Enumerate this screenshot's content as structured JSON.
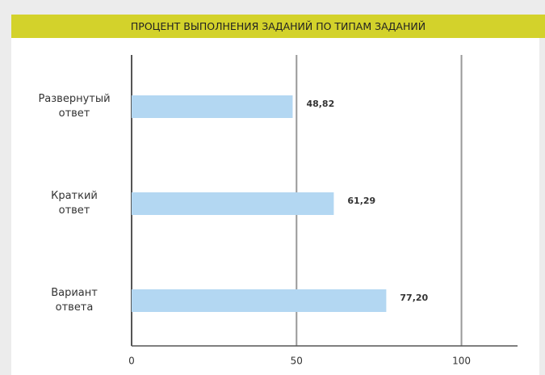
{
  "chart_data": {
    "type": "bar",
    "orientation": "horizontal",
    "title": "ПРОЦЕНТ ВЫПОЛНЕНИЯ ЗАДАНИЙ ПО ТИПАМ ЗАДАНИЙ",
    "categories": [
      "Развернутый\nответ",
      "Краткий\nответ",
      "Вариант\nответа"
    ],
    "values": [
      48.82,
      61.29,
      77.2
    ],
    "value_labels": [
      "48,82",
      "61,29",
      "77,20"
    ],
    "color": "#b3d7f2",
    "xlim": [
      0,
      117
    ],
    "xticks": [
      0,
      50,
      100
    ],
    "grid": true
  }
}
